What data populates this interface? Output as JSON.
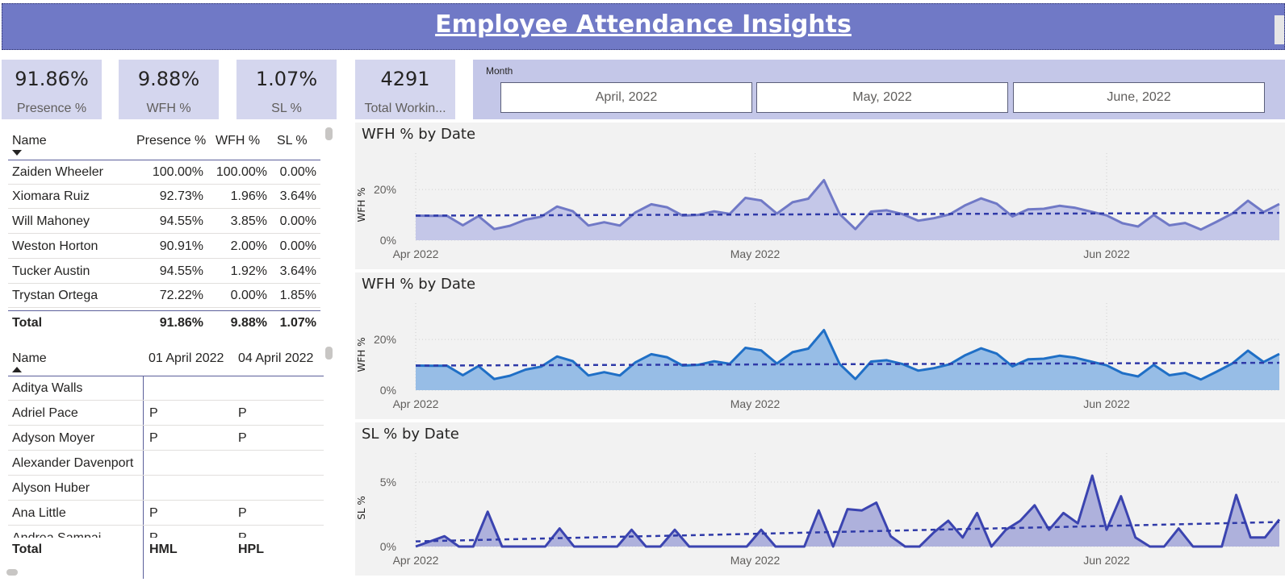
{
  "header": {
    "title": "Employee Attendance Insights"
  },
  "kpis": [
    {
      "value": "91.86%",
      "label": "Presence %"
    },
    {
      "value": "9.88%",
      "label": "WFH %"
    },
    {
      "value": "1.07%",
      "label": "SL %"
    },
    {
      "value": "4291",
      "label": "Total Workin..."
    }
  ],
  "month_slicer": {
    "title": "Month",
    "options": [
      "April, 2022",
      "May, 2022",
      "June, 2022"
    ]
  },
  "summary_table": {
    "columns": [
      "Name",
      "Presence %",
      "WFH %",
      "SL %"
    ],
    "rows": [
      [
        "Zaiden Wheeler",
        "100.00%",
        "100.00%",
        "0.00%"
      ],
      [
        "Xiomara Ruiz",
        "92.73%",
        "1.96%",
        "3.64%"
      ],
      [
        "Will Mahoney",
        "94.55%",
        "3.85%",
        "0.00%"
      ],
      [
        "Weston Horton",
        "90.91%",
        "2.00%",
        "0.00%"
      ],
      [
        "Tucker Austin",
        "94.55%",
        "1.92%",
        "3.64%"
      ],
      [
        "Trystan Ortega",
        "72.22%",
        "0.00%",
        "1.85%"
      ]
    ],
    "total": [
      "Total",
      "91.86%",
      "9.88%",
      "1.07%"
    ]
  },
  "daily_table": {
    "columns": [
      "Name",
      "01 April 2022",
      "04 April 2022"
    ],
    "rows": [
      [
        "Aditya Walls",
        "",
        ""
      ],
      [
        "Adriel Pace",
        "P",
        "P"
      ],
      [
        "Adyson Moyer",
        "P",
        "P"
      ],
      [
        "Alexander Davenport",
        "",
        ""
      ],
      [
        "Alyson Huber",
        "",
        ""
      ],
      [
        "Ana Little",
        "P",
        "P"
      ],
      [
        "Andrea Sampai...",
        "P",
        "P"
      ]
    ],
    "total": [
      "Total",
      "HML",
      "HPL"
    ]
  },
  "chart_data": [
    {
      "type": "area",
      "title": "WFH % by Date",
      "ylabel": "WFH %",
      "xticks": [
        "Apr 2022",
        "May 2022",
        "Jun 2022"
      ],
      "yticks": [
        "0%",
        "20%"
      ],
      "ylim": [
        0,
        0.28
      ],
      "trendline": {
        "start": 0.097,
        "end": 0.108,
        "style": "dashed"
      },
      "color": "#7079c6",
      "fill": "#c4c7e8",
      "series": [
        {
          "values": [
            0.097,
            0.096,
            0.096,
            0.059,
            0.095,
            0.044,
            0.057,
            0.081,
            0.093,
            0.133,
            0.115,
            0.058,
            0.071,
            0.058,
            0.11,
            0.142,
            0.13,
            0.097,
            0.1,
            0.114,
            0.104,
            0.167,
            0.157,
            0.105,
            0.15,
            0.164,
            0.237,
            0.103,
            0.044,
            0.113,
            0.118,
            0.103,
            0.077,
            0.087,
            0.102,
            0.138,
            0.165,
            0.144,
            0.094,
            0.122,
            0.124,
            0.136,
            0.128,
            0.113,
            0.098,
            0.067,
            0.054,
            0.1,
            0.059,
            0.068,
            0.042,
            0.073,
            0.105,
            0.156,
            0.111,
            0.143
          ]
        }
      ]
    },
    {
      "type": "area",
      "title": "WFH % by Date",
      "ylabel": "WFH %",
      "xticks": [
        "Apr 2022",
        "May 2022",
        "Jun 2022"
      ],
      "yticks": [
        "0%",
        "20%"
      ],
      "ylim": [
        0,
        0.28
      ],
      "trendline": {
        "start": 0.097,
        "end": 0.108,
        "style": "dashed"
      },
      "color": "#1f6fc6",
      "fill": "#97bde6",
      "series": [
        {
          "values": [
            0.097,
            0.096,
            0.096,
            0.059,
            0.095,
            0.044,
            0.057,
            0.081,
            0.093,
            0.133,
            0.115,
            0.058,
            0.071,
            0.058,
            0.11,
            0.142,
            0.13,
            0.097,
            0.1,
            0.114,
            0.104,
            0.167,
            0.157,
            0.105,
            0.15,
            0.164,
            0.237,
            0.103,
            0.044,
            0.113,
            0.118,
            0.103,
            0.077,
            0.087,
            0.102,
            0.138,
            0.165,
            0.144,
            0.094,
            0.122,
            0.124,
            0.136,
            0.128,
            0.113,
            0.098,
            0.067,
            0.054,
            0.1,
            0.059,
            0.068,
            0.042,
            0.073,
            0.105,
            0.156,
            0.111,
            0.143
          ]
        }
      ]
    },
    {
      "type": "area",
      "title": "SL % by Date",
      "ylabel": "SL %",
      "xticks": [
        "Apr 2022",
        "May 2022",
        "Jun 2022"
      ],
      "yticks": [
        "0%",
        "5%"
      ],
      "ylim": [
        0,
        0.06
      ],
      "trendline": {
        "start": 0.004,
        "end": 0.019,
        "style": "dashed"
      },
      "color": "#3b44b0",
      "fill": "#aeb1dc",
      "series": [
        {
          "values": [
            0.0,
            0.004,
            0.008,
            0.0,
            0.0,
            0.027,
            0.0,
            0.0,
            0.0,
            0.0,
            0.014,
            0.0,
            0.0,
            0.0,
            0.0,
            0.013,
            0.0,
            0.0,
            0.013,
            0.0,
            0.0,
            0.0,
            0.0,
            0.0,
            0.013,
            0.0,
            0.0,
            0.0,
            0.028,
            0.0,
            0.029,
            0.028,
            0.034,
            0.008,
            0.0,
            0.0,
            0.011,
            0.02,
            0.007,
            0.026,
            0.0,
            0.013,
            0.02,
            0.032,
            0.013,
            0.026,
            0.018,
            0.055,
            0.013,
            0.039,
            0.007,
            0.0,
            0.0,
            0.014,
            0.0,
            0.0,
            0.0,
            0.04,
            0.007,
            0.007,
            0.021
          ]
        }
      ]
    }
  ]
}
